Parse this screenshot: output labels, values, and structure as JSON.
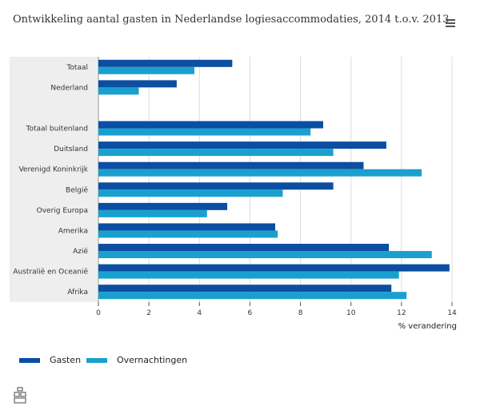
{
  "header": {
    "title": "Ontwikkeling aantal gasten in Nederlandse logiesaccommodaties, 2014 t.o.v. 2013",
    "menu_icon": "hamburger-menu-icon"
  },
  "colors": {
    "gasten": "#0b4ea2",
    "overnachtingen": "#1aa0cf",
    "category_band": "#eeeeee",
    "grid": "#dddddd",
    "axis": "#555555"
  },
  "legend": {
    "items": [
      {
        "label": "Gasten",
        "color": "#0b4ea2"
      },
      {
        "label": "Overnachtingen",
        "color": "#1aa0cf"
      }
    ]
  },
  "footer": {
    "logo_icon": "cbs-logo-icon"
  },
  "chart_data": {
    "type": "bar",
    "orientation": "horizontal",
    "title": "Ontwikkeling aantal gasten in Nederlandse logiesaccommodaties, 2014 t.o.v. 2013",
    "xlabel": "% verandering",
    "ylabel": "",
    "xlim": [
      0,
      14
    ],
    "xticks": [
      "0",
      "2",
      "4",
      "6",
      "8",
      "10",
      "12",
      "14"
    ],
    "grid": true,
    "legend_position": "bottom-left",
    "categories": [
      "Totaal",
      "Nederland",
      "",
      "Totaal buitenland",
      "Duitsland",
      "Verenigd Koninkrijk",
      "België",
      "Overig Europa",
      "Amerika",
      "Azië",
      "Australië en Oceanië",
      "Afrika"
    ],
    "series": [
      {
        "name": "Gasten",
        "values": [
          5.3,
          3.1,
          null,
          8.9,
          11.4,
          10.5,
          9.3,
          5.1,
          7.0,
          11.5,
          13.9,
          11.6
        ]
      },
      {
        "name": "Overnachtingen",
        "values": [
          3.8,
          1.6,
          null,
          8.4,
          9.3,
          12.8,
          7.3,
          4.3,
          7.1,
          13.2,
          11.9,
          12.2
        ]
      }
    ]
  }
}
